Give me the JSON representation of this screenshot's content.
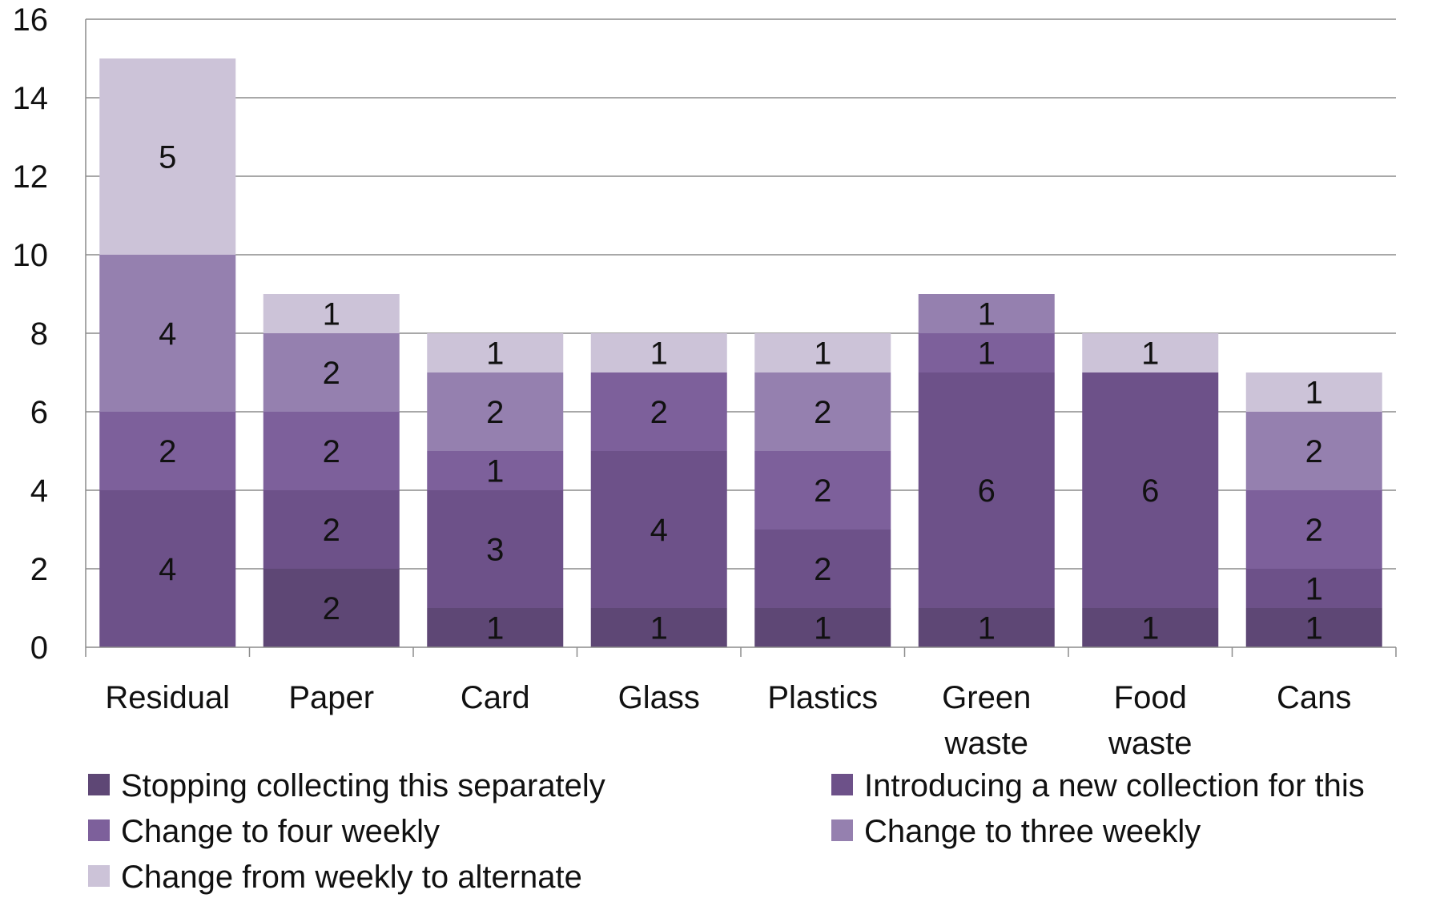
{
  "chart_data": {
    "type": "bar",
    "stacked": true,
    "categories": [
      "Residual",
      "Paper",
      "Card",
      "Glass",
      "Plastics",
      "Green waste",
      "Food waste",
      "Cans"
    ],
    "category_lines": [
      [
        "Residual"
      ],
      [
        "Paper"
      ],
      [
        "Card"
      ],
      [
        "Glass"
      ],
      [
        "Plastics"
      ],
      [
        "Green",
        "waste"
      ],
      [
        "Food",
        "waste"
      ],
      [
        "Cans"
      ]
    ],
    "series": [
      {
        "name": "Stopping collecting this separately",
        "color": "#5e4775",
        "values": [
          0,
          2,
          1,
          1,
          1,
          1,
          1,
          1
        ]
      },
      {
        "name": "Introducing a new collection for this",
        "color": "#6d5189",
        "values": [
          4,
          2,
          3,
          4,
          2,
          6,
          6,
          1
        ]
      },
      {
        "name": "Change to four weekly",
        "color": "#7d609b",
        "values": [
          2,
          2,
          1,
          2,
          2,
          1,
          0,
          2
        ]
      },
      {
        "name": "Change to three weekly",
        "color": "#9580af",
        "values": [
          4,
          2,
          2,
          0,
          2,
          1,
          0,
          2
        ]
      },
      {
        "name": "Change from weekly to alternate",
        "color": "#ccc3d8",
        "values": [
          5,
          1,
          1,
          1,
          1,
          0,
          1,
          1
        ]
      }
    ],
    "ylim": [
      0,
      16
    ],
    "yticks": [
      0,
      2,
      4,
      6,
      8,
      10,
      12,
      14,
      16
    ],
    "grid": true,
    "legend_position": "bottom",
    "title": "",
    "xlabel": "",
    "ylabel": ""
  }
}
